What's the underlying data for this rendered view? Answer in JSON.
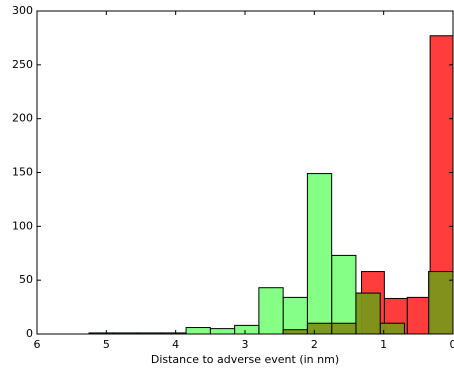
{
  "chart_data": {
    "type": "histogram",
    "xlabel": "Distance to adverse event (in nm)",
    "xlim": [
      6,
      0
    ],
    "ylim": [
      0,
      300
    ],
    "xticks": [
      6,
      5,
      4,
      3,
      2,
      1,
      0
    ],
    "yticks": [
      0,
      50,
      100,
      150,
      200,
      250,
      300
    ],
    "series": [
      {
        "color": "#80ff80",
        "bins": [
          0,
          0.35,
          0.7,
          1.05,
          1.4,
          1.75,
          2.1,
          2.45,
          2.8,
          3.15,
          3.5,
          3.85,
          4.2,
          4.55,
          4.9,
          5.25
        ],
        "values": [
          58,
          0,
          10,
          38,
          73,
          149,
          34,
          43,
          8,
          5,
          6,
          1,
          1,
          1,
          1
        ]
      },
      {
        "color": "#ff3333",
        "bins": [
          0,
          0.33,
          0.66,
          0.99,
          1.32
        ],
        "values": [
          277,
          34,
          33,
          58
        ]
      },
      {
        "color": "#7a9619",
        "bins": [
          0,
          0.35,
          0.7,
          1.05,
          1.4,
          1.75,
          2.1,
          2.45
        ],
        "values": [
          58,
          0,
          10,
          38,
          10,
          10,
          4
        ]
      }
    ]
  }
}
